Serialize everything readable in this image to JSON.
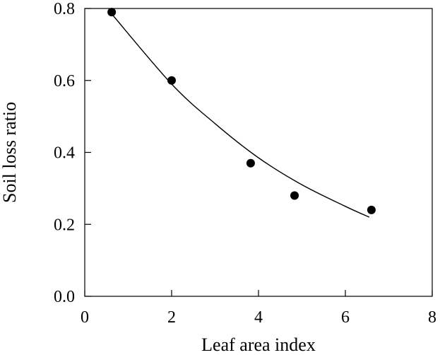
{
  "chart_data": {
    "type": "scatter",
    "title": "",
    "xlabel": "Leaf area index",
    "ylabel": "Soil loss ratio",
    "xlim": [
      0,
      8
    ],
    "ylim": [
      0,
      0.8
    ],
    "x_ticks": [
      "0",
      "2",
      "4",
      "6",
      "8"
    ],
    "y_ticks": [
      "0.0",
      "0.2",
      "0.4",
      "0.6",
      "0.8"
    ],
    "grid": false,
    "legend": "none",
    "series": [
      {
        "kind": "points",
        "marker_color": "#000000",
        "points": [
          {
            "x": 0.62,
            "y": 0.79
          },
          {
            "x": 2.0,
            "y": 0.6
          },
          {
            "x": 3.82,
            "y": 0.37
          },
          {
            "x": 4.83,
            "y": 0.28
          },
          {
            "x": 6.6,
            "y": 0.24
          }
        ]
      },
      {
        "kind": "fit",
        "line_color": "#000000",
        "x_range": [
          0.62,
          6.55
        ],
        "points": [
          {
            "x": 0.62,
            "y": 0.785
          },
          {
            "x": 2.0,
            "y": 0.59
          },
          {
            "x": 3.0,
            "y": 0.48
          },
          {
            "x": 4.0,
            "y": 0.385
          },
          {
            "x": 5.0,
            "y": 0.31
          },
          {
            "x": 6.0,
            "y": 0.25
          },
          {
            "x": 6.55,
            "y": 0.22
          }
        ]
      }
    ]
  }
}
